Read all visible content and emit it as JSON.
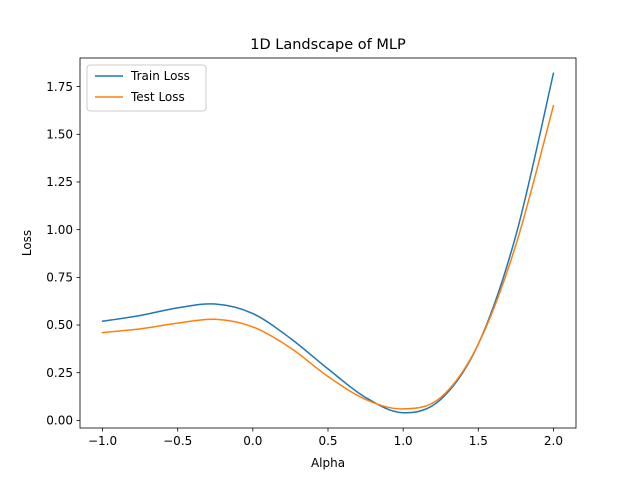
{
  "chart_data": {
    "type": "line",
    "title": "1D Landscape of MLP",
    "xlabel": "Alpha",
    "ylabel": "Loss",
    "xlim": [
      -1.15,
      2.15
    ],
    "ylim": [
      -0.04,
      1.9
    ],
    "xticks": [
      -1.0,
      -0.5,
      0.0,
      0.5,
      1.0,
      1.5,
      2.0
    ],
    "xtick_labels": [
      "−1.0",
      "−0.5",
      "0.0",
      "0.5",
      "1.0",
      "1.5",
      "2.0"
    ],
    "yticks": [
      0.0,
      0.25,
      0.5,
      0.75,
      1.0,
      1.25,
      1.5,
      1.75
    ],
    "ytick_labels": [
      "0.00",
      "0.25",
      "0.50",
      "0.75",
      "1.00",
      "1.25",
      "1.50",
      "1.75"
    ],
    "grid": false,
    "legend_position": "top-left",
    "x": [
      -1.0,
      -0.75,
      -0.5,
      -0.25,
      0.0,
      0.25,
      0.5,
      0.75,
      1.0,
      1.25,
      1.5,
      1.75,
      2.0
    ],
    "series": [
      {
        "name": "Train Loss",
        "color": "#1f77b4",
        "values": [
          0.52,
          0.55,
          0.59,
          0.61,
          0.56,
          0.43,
          0.27,
          0.12,
          0.04,
          0.11,
          0.4,
          0.97,
          1.82
        ]
      },
      {
        "name": "Test Loss",
        "color": "#ff7f0e",
        "values": [
          0.46,
          0.48,
          0.51,
          0.53,
          0.49,
          0.38,
          0.23,
          0.11,
          0.06,
          0.12,
          0.4,
          0.92,
          1.65
        ]
      }
    ]
  }
}
